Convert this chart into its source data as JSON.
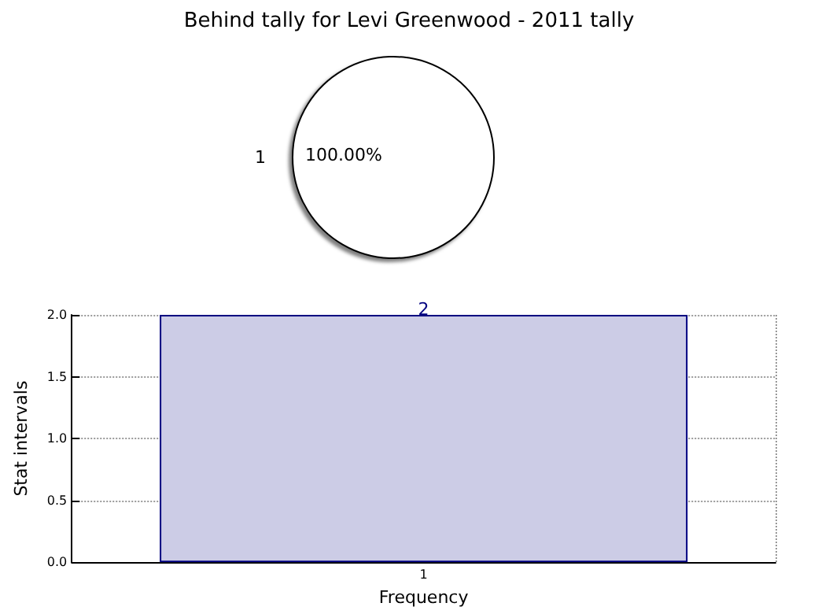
{
  "chart_data": [
    {
      "type": "pie",
      "title": "Behind tally for Levi Greenwood - 2011 tally",
      "categories": [
        "1"
      ],
      "values": [
        100
      ],
      "colors": [
        "#ffffff"
      ],
      "value_labels": [
        "100.00%"
      ]
    },
    {
      "type": "bar",
      "xlabel": "Frequency",
      "ylabel": "Stat intervals",
      "categories": [
        "1"
      ],
      "values": [
        2
      ],
      "color": "#cccce6",
      "data_labels": true,
      "ylim": [
        0,
        2
      ],
      "yticks": [
        {
          "value": 0,
          "label": "0.0"
        },
        {
          "value": 0.5,
          "label": "0.5"
        },
        {
          "value": 1,
          "label": "1.0"
        },
        {
          "value": 1.5,
          "label": "1.5"
        },
        {
          "value": 2,
          "label": "2.0"
        }
      ],
      "grid": true
    }
  ]
}
